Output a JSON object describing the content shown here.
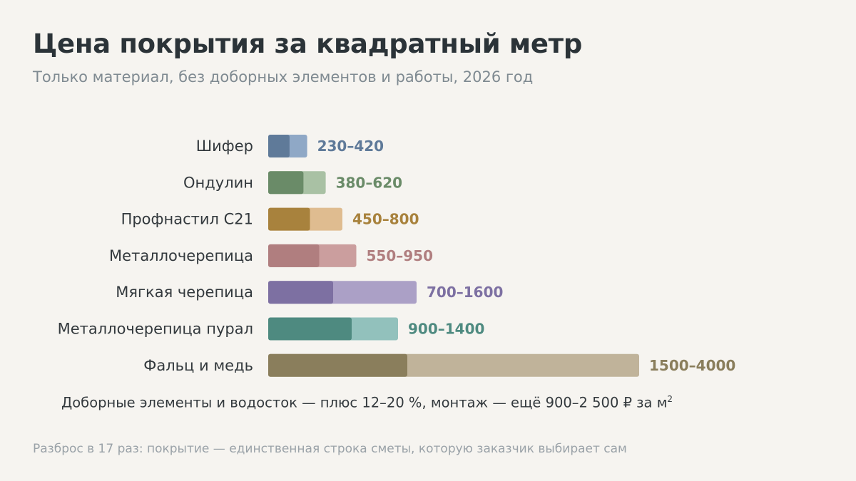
{
  "header": {
    "title": "Цена покрытия за квадратный метр",
    "subtitle": "Только материал, без доборных элементов и работы, 2026 год"
  },
  "chart_data": {
    "type": "bar",
    "title": "Цена покрытия за квадратный метр",
    "subtitle": "Только материал, без доборных элементов и работы, 2026 год",
    "categories": [
      "Шифер",
      "Ондулин",
      "Профнастил С21",
      "Металлочерепица",
      "Мягкая черепица",
      "Металлочерепица пурал",
      "Фальц и медь"
    ],
    "ranges": [
      {
        "min": 230,
        "max": 420,
        "label": "230–420",
        "color_dark": "#5f7a99",
        "color_light": "#8fa8c6"
      },
      {
        "min": 380,
        "max": 620,
        "label": "380–620",
        "color_dark": "#6a8b68",
        "color_light": "#a9c1a4"
      },
      {
        "min": 450,
        "max": 800,
        "label": "450–800",
        "color_dark": "#a8823d",
        "color_light": "#dfbc90"
      },
      {
        "min": 550,
        "max": 950,
        "label": "550–950",
        "color_dark": "#b07e7f",
        "color_light": "#cb9e9e"
      },
      {
        "min": 700,
        "max": 1600,
        "label": "700–1600",
        "color_dark": "#7d70a2",
        "color_light": "#aba0c6"
      },
      {
        "min": 900,
        "max": 1400,
        "label": "900–1400",
        "color_dark": "#4e8a80",
        "color_light": "#92c1bc"
      },
      {
        "min": 1500,
        "max": 4000,
        "label": "1500–4000",
        "color_dark": "#8a7e5c",
        "color_light": "#c0b39a"
      }
    ],
    "value_label_colors": [
      "#5f7a99",
      "#6a8b68",
      "#a8823d",
      "#b07e7f",
      "#7d70a2",
      "#4e8a80",
      "#8a7e5c"
    ],
    "xlim": [
      0,
      4000
    ],
    "grid": false,
    "legend": "none"
  },
  "note": {
    "text": "Доборные элементы и водосток — плюс 12–20 %, монтаж — ещё 900–2 500 ₽ за м",
    "sup": "2"
  },
  "footer": {
    "text": "Разброс в 17 раз: покрытие — единственная строка сметы, которую заказчик выбирает сам"
  }
}
